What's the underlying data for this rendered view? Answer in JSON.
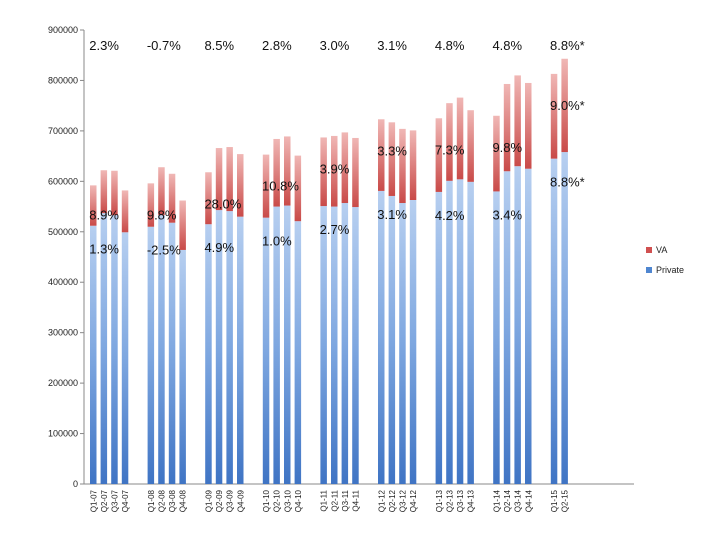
{
  "chart_data": {
    "type": "bar",
    "stacked": true,
    "grid": false,
    "ylim": [
      0,
      900000
    ],
    "yticks": [
      0,
      100000,
      200000,
      300000,
      400000,
      500000,
      600000,
      700000,
      800000,
      900000
    ],
    "ytick_labels": [
      "0",
      "100000",
      "200000",
      "300000",
      "400000",
      "500000",
      "600000",
      "700000",
      "800000",
      "900000"
    ],
    "legend_position": "right",
    "groups": [
      {
        "categories": [
          "Q1-07",
          "Q2-07",
          "Q3-07",
          "Q4-07"
        ],
        "private": [
          512000,
          537000,
          533000,
          499000
        ],
        "va": [
          80000,
          85000,
          88000,
          83000
        ],
        "top_label": "2.3%",
        "va_label": "8.9%",
        "private_label": "1.3%"
      },
      {
        "categories": [
          "Q1-08",
          "Q2-08",
          "Q3-08",
          "Q4-08"
        ],
        "private": [
          510000,
          533000,
          518000,
          464000
        ],
        "va": [
          86000,
          95000,
          97000,
          98000
        ],
        "top_label": "-0.7%",
        "va_label": "9.8%",
        "private_label": "-2.5%"
      },
      {
        "categories": [
          "Q1-09",
          "Q2-09",
          "Q3-09",
          "Q4-09"
        ],
        "private": [
          515000,
          543000,
          541000,
          530000
        ],
        "va": [
          103000,
          123000,
          127000,
          124000
        ],
        "top_label": "8.5%",
        "va_label": "28.0%",
        "private_label": "4.9%"
      },
      {
        "categories": [
          "Q1-10",
          "Q2-10",
          "Q3-10",
          "Q4-10"
        ],
        "private": [
          528000,
          550000,
          552000,
          521000
        ],
        "va": [
          125000,
          134000,
          137000,
          130000
        ],
        "top_label": "2.8%",
        "va_label": "10.8%",
        "private_label": "1.0%"
      },
      {
        "categories": [
          "Q1-11",
          "Q2-11",
          "Q3-11",
          "Q4-11"
        ],
        "private": [
          551000,
          550000,
          557000,
          549000
        ],
        "va": [
          136000,
          140000,
          140000,
          137000
        ],
        "top_label": "3.0%",
        "va_label": "3.9%",
        "private_label": "2.7%"
      },
      {
        "categories": [
          "Q1-12",
          "Q2-12",
          "Q3-12",
          "Q4-12"
        ],
        "private": [
          581000,
          571000,
          557000,
          563000
        ],
        "va": [
          142000,
          146000,
          147000,
          138000
        ],
        "top_label": "3.1%",
        "va_label": "3.3%",
        "private_label": "3.1%"
      },
      {
        "categories": [
          "Q1-13",
          "Q2-13",
          "Q3-13",
          "Q4-13"
        ],
        "private": [
          579000,
          601000,
          604000,
          599000
        ],
        "va": [
          146000,
          154000,
          162000,
          142000
        ],
        "top_label": "4.8%",
        "va_label": "7.3%",
        "private_label": "4.2%"
      },
      {
        "categories": [
          "Q1-14",
          "Q2-14",
          "Q3-14",
          "Q4-14"
        ],
        "private": [
          580000,
          620000,
          630000,
          625000
        ],
        "va": [
          150000,
          173000,
          180000,
          170000
        ],
        "top_label": "4.8%",
        "va_label": "9.8%",
        "private_label": "3.4%"
      },
      {
        "categories": [
          "Q1-15",
          "Q2-15"
        ],
        "private": [
          645000,
          658000
        ],
        "va": [
          168000,
          185000
        ],
        "top_label": "8.8%*",
        "va_label": "9.0%*",
        "private_label": "8.8%*"
      }
    ],
    "series": [
      {
        "name": "VA",
        "color": "#d05050"
      },
      {
        "name": "Private",
        "color": "#4f86d0"
      }
    ]
  }
}
